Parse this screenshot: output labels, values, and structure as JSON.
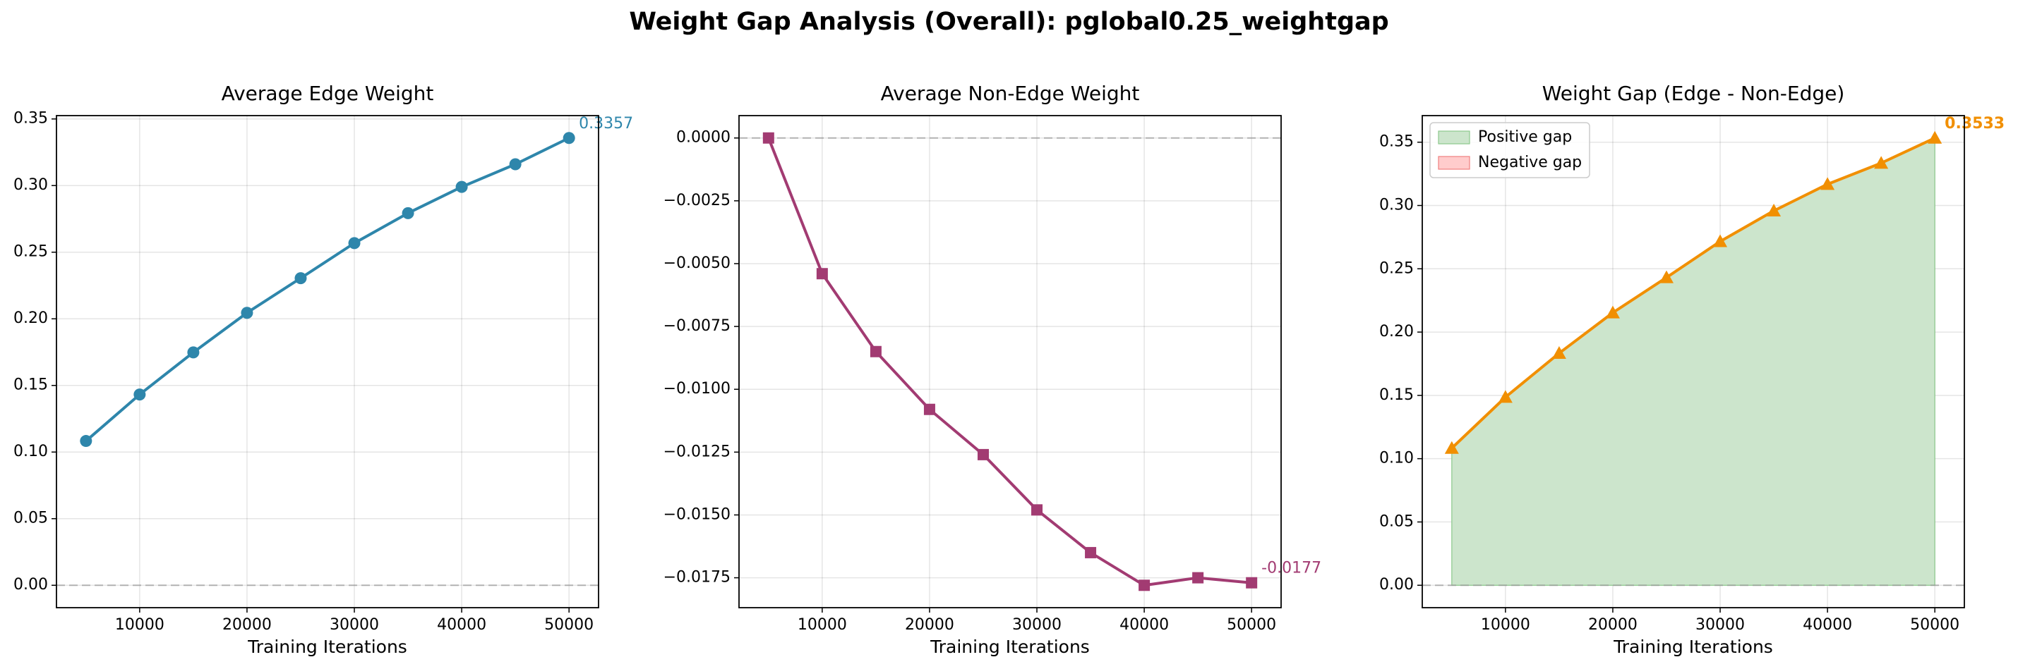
{
  "figure": {
    "suptitle": "Weight Gap Analysis (Overall): pglobal0.25_weightgap"
  },
  "chart_data": [
    {
      "type": "line",
      "title": "Average Edge Weight",
      "xlabel": "Training Iterations",
      "ylabel": "",
      "x": [
        5000,
        10000,
        15000,
        20000,
        25000,
        30000,
        35000,
        40000,
        45000,
        50000
      ],
      "series": [
        {
          "values": [
            0.1083,
            0.1432,
            0.1748,
            0.2045,
            0.2305,
            0.2568,
            0.2793,
            0.299,
            0.316,
            0.3357
          ],
          "color": "#2e86ab",
          "marker": "circle"
        }
      ],
      "end_label": "0.3357",
      "zero_line": true,
      "xlim": [
        2250,
        52750
      ],
      "ylim": [
        -0.0168,
        0.3525
      ],
      "xticks": [
        10000,
        20000,
        30000,
        40000,
        50000
      ],
      "xtick_labels": [
        "10000",
        "20000",
        "30000",
        "40000",
        "50000"
      ],
      "yticks": [
        0.0,
        0.05,
        0.1,
        0.15,
        0.2,
        0.25,
        0.3,
        0.35
      ],
      "ytick_labels": [
        "0.00",
        "0.05",
        "0.10",
        "0.15",
        "0.20",
        "0.25",
        "0.30",
        "0.35"
      ],
      "grid": true,
      "legend": null
    },
    {
      "type": "line",
      "title": "Average Non-Edge Weight",
      "xlabel": "Training Iterations",
      "ylabel": "",
      "x": [
        5000,
        10000,
        15000,
        20000,
        25000,
        30000,
        35000,
        40000,
        45000,
        50000
      ],
      "series": [
        {
          "values": [
            0.0,
            -0.0054,
            -0.0085,
            -0.0108,
            -0.0126,
            -0.0148,
            -0.0165,
            -0.0178,
            -0.0175,
            -0.0177
          ],
          "color": "#a23b72",
          "marker": "square"
        }
      ],
      "end_label": "-0.0177",
      "zero_line": true,
      "xlim": [
        2250,
        52750
      ],
      "ylim": [
        -0.01869,
        0.00089
      ],
      "xticks": [
        10000,
        20000,
        30000,
        40000,
        50000
      ],
      "xtick_labels": [
        "10000",
        "20000",
        "30000",
        "40000",
        "50000"
      ],
      "yticks": [
        0.0,
        -0.0025,
        -0.005,
        -0.0075,
        -0.01,
        -0.0125,
        -0.015,
        -0.0175
      ],
      "ytick_labels": [
        "0.0000",
        "−0.0025",
        "−0.0050",
        "−0.0075",
        "−0.0100",
        "−0.0125",
        "−0.0150",
        "−0.0175"
      ],
      "grid": true,
      "legend": null
    },
    {
      "type": "area",
      "title": "Weight Gap (Edge - Non-Edge)",
      "xlabel": "Training Iterations",
      "ylabel": "",
      "x": [
        5000,
        10000,
        15000,
        20000,
        25000,
        30000,
        35000,
        40000,
        45000,
        50000
      ],
      "series": [
        {
          "values": [
            0.1083,
            0.1486,
            0.1833,
            0.2153,
            0.2431,
            0.2716,
            0.2958,
            0.3168,
            0.3335,
            0.3533
          ],
          "color": "#f18f01",
          "marker": "triangle"
        }
      ],
      "fill": {
        "positive_color": "#cce5cc",
        "positive_edge": "#8cc88c",
        "negative_color": "#ffcccc",
        "negative_edge": "#f08080"
      },
      "legend_entries": [
        "Positive gap",
        "Negative gap"
      ],
      "legend_position": "top-left",
      "end_label": "0.3533",
      "zero_line": true,
      "xlim": [
        2250,
        52750
      ],
      "ylim": [
        -0.0177,
        0.371
      ],
      "xticks": [
        10000,
        20000,
        30000,
        40000,
        50000
      ],
      "xtick_labels": [
        "10000",
        "20000",
        "30000",
        "40000",
        "50000"
      ],
      "yticks": [
        0.0,
        0.05,
        0.1,
        0.15,
        0.2,
        0.25,
        0.3,
        0.35
      ],
      "ytick_labels": [
        "0.00",
        "0.05",
        "0.10",
        "0.15",
        "0.20",
        "0.25",
        "0.30",
        "0.35"
      ],
      "grid": true
    }
  ]
}
